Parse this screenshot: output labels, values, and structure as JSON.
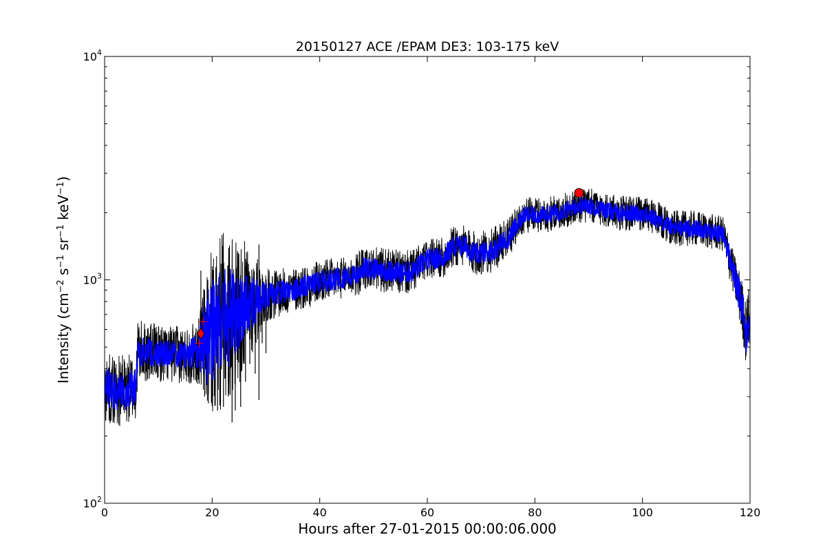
{
  "chart_data": {
    "type": "line",
    "title": "20150127 ACE /EPAM DE3: 103-175 keV",
    "xlabel": "Hours after 27-01-2015 00:00:06.000",
    "ylabel_parts": [
      "Intensity (cm",
      "−2",
      " s",
      "−1",
      " sr",
      "−1",
      " keV",
      "−1",
      ")"
    ],
    "xlim": [
      0,
      120
    ],
    "ylim": [
      100,
      10000
    ],
    "yscale": "log",
    "xticks": [
      0,
      20,
      40,
      60,
      80,
      100,
      120
    ],
    "xtick_labels": [
      "0",
      "20",
      "40",
      "60",
      "80",
      "100",
      "120"
    ],
    "ytick_labels": [
      {
        "value": 100,
        "base": "10",
        "exp": "2"
      },
      {
        "value": 1000,
        "base": "10",
        "exp": "3"
      },
      {
        "value": 10000,
        "base": "10",
        "exp": "4"
      }
    ],
    "grid": false,
    "series": [
      {
        "role": "raw",
        "color": "#000000",
        "x": [
          0,
          2,
          4,
          5.8,
          6.2,
          10,
          15,
          17.5,
          19,
          22,
          26,
          30,
          35,
          40,
          45,
          47,
          48,
          50,
          55,
          57,
          60,
          63,
          65,
          67,
          69,
          72,
          75,
          78,
          82,
          86,
          88,
          90,
          95,
          100,
          103,
          106,
          110,
          115,
          116,
          117,
          118,
          119,
          119.3,
          119.6,
          120
        ],
        "y": [
          330,
          320,
          320,
          330,
          480,
          470,
          460,
          480,
          560,
          650,
          750,
          850,
          900,
          980,
          1030,
          1050,
          1130,
          1120,
          1080,
          1080,
          1230,
          1260,
          1420,
          1420,
          1300,
          1350,
          1530,
          1950,
          1950,
          2050,
          2150,
          2150,
          2000,
          1980,
          1850,
          1700,
          1700,
          1600,
          1300,
          1050,
          850,
          650,
          540,
          700,
          600
        ],
        "noise": [
          0.16,
          0.16,
          0.16,
          0.16,
          0.14,
          0.13,
          0.13,
          0.15,
          0.35,
          0.4,
          0.3,
          0.12,
          0.1,
          0.1,
          0.09,
          0.1,
          0.1,
          0.1,
          0.1,
          0.1,
          0.09,
          0.09,
          0.1,
          0.09,
          0.1,
          0.1,
          0.09,
          0.08,
          0.08,
          0.08,
          0.08,
          0.08,
          0.08,
          0.08,
          0.08,
          0.08,
          0.08,
          0.08,
          0.1,
          0.1,
          0.12,
          0.14,
          0.14,
          0.14,
          0.14
        ],
        "spikes": [
          {
            "x": 17.9,
            "y0": 520,
            "y1": 1100
          },
          {
            "x": 18.2,
            "y0": 400,
            "y1": 800
          },
          {
            "x": 18.6,
            "y0": 300,
            "y1": 900
          },
          {
            "x": 19.3,
            "y0": 280,
            "y1": 750
          },
          {
            "x": 20.1,
            "y0": 300,
            "y1": 850
          },
          {
            "x": 21.0,
            "y0": 260,
            "y1": 950
          },
          {
            "x": 22.1,
            "y0": 270,
            "y1": 880
          },
          {
            "x": 23.0,
            "y0": 300,
            "y1": 800
          },
          {
            "x": 23.7,
            "y0": 230,
            "y1": 780
          },
          {
            "x": 24.3,
            "y0": 260,
            "y1": 820
          },
          {
            "x": 25.3,
            "y0": 270,
            "y1": 1050
          },
          {
            "x": 26.2,
            "y0": 350,
            "y1": 1150
          },
          {
            "x": 27.0,
            "y0": 420,
            "y1": 1000
          },
          {
            "x": 28.0,
            "y0": 380,
            "y1": 950
          },
          {
            "x": 28.7,
            "y0": 290,
            "y1": 1440
          },
          {
            "x": 29.3,
            "y0": 520,
            "y1": 1000
          },
          {
            "x": 30.0,
            "y0": 470,
            "y1": 900
          }
        ]
      },
      {
        "role": "smoothed",
        "color": "#0000ff",
        "x": [
          0,
          2,
          4,
          5.8,
          6.2,
          10,
          15,
          17.5,
          19,
          22,
          26,
          30,
          35,
          40,
          45,
          47,
          48,
          50,
          55,
          57,
          60,
          63,
          65,
          67,
          69,
          72,
          75,
          78,
          82,
          86,
          88,
          90,
          95,
          100,
          103,
          106,
          110,
          115,
          116,
          117,
          118,
          119,
          119.3,
          119.6,
          120
        ],
        "y": [
          330,
          320,
          320,
          330,
          480,
          470,
          460,
          480,
          560,
          650,
          750,
          850,
          900,
          980,
          1030,
          1050,
          1130,
          1120,
          1080,
          1080,
          1230,
          1260,
          1420,
          1420,
          1300,
          1350,
          1530,
          1950,
          1950,
          2050,
          2150,
          2150,
          2000,
          1980,
          1850,
          1700,
          1700,
          1600,
          1300,
          1050,
          850,
          650,
          540,
          700,
          600
        ],
        "noise": [
          0.09,
          0.09,
          0.09,
          0.09,
          0.07,
          0.06,
          0.06,
          0.08,
          0.22,
          0.25,
          0.15,
          0.06,
          0.05,
          0.05,
          0.05,
          0.05,
          0.05,
          0.05,
          0.05,
          0.05,
          0.05,
          0.05,
          0.05,
          0.05,
          0.05,
          0.05,
          0.05,
          0.04,
          0.04,
          0.04,
          0.04,
          0.04,
          0.04,
          0.04,
          0.04,
          0.04,
          0.04,
          0.04,
          0.06,
          0.06,
          0.08,
          0.1,
          0.1,
          0.1,
          0.1
        ]
      }
    ],
    "markers": [
      {
        "kind": "circle",
        "x": 88.2,
        "y": 2450,
        "color": "#ff0000"
      },
      {
        "kind": "diamond",
        "x": 17.9,
        "y": 575,
        "color": "#ff0000"
      },
      {
        "kind": "plus",
        "x": 17.6,
        "y": 520,
        "color": "#ff0000"
      },
      {
        "kind": "plus",
        "x": 18.3,
        "y": 650,
        "color": "#ff0000"
      }
    ]
  }
}
